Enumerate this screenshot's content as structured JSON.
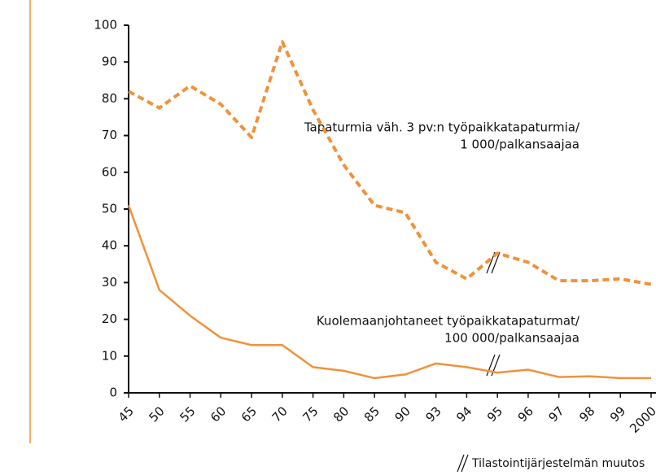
{
  "chart_data": {
    "type": "line",
    "categories": [
      "45",
      "50",
      "55",
      "60",
      "65",
      "70",
      "75",
      "80",
      "85",
      "90",
      "93",
      "94",
      "95",
      "96",
      "97",
      "98",
      "99",
      "2000"
    ],
    "series": [
      {
        "color": "#f0923a",
        "dashed": true,
        "values": [
          82,
          77.5,
          83.5,
          78.5,
          69.5,
          95.5,
          77,
          62,
          51,
          49,
          35.5,
          31,
          38,
          35.5,
          30.5,
          30.5,
          31,
          29.5
        ]
      },
      {
        "color": "#f0923a",
        "dashed": false,
        "values": [
          51,
          28,
          21,
          15,
          13,
          13,
          7,
          6,
          4,
          5,
          8,
          7,
          5.5,
          6.3,
          4.3,
          4.5,
          4,
          4
        ]
      }
    ],
    "ylim": [
      0,
      100
    ],
    "yticks": [
      0,
      10,
      20,
      30,
      40,
      50,
      60,
      70,
      80,
      90,
      100
    ],
    "annotations": [
      [
        "Tapaturmia väh. 3 pv:n työpaikkatapaturmia/",
        "1 000/palkansaajaa"
      ],
      [
        "Kuolemaanjohtaneet työpaikkatapaturmat/",
        "100 000/palkansaajaa"
      ]
    ],
    "footnote": "Tilastointijärjestelmän muutos"
  }
}
